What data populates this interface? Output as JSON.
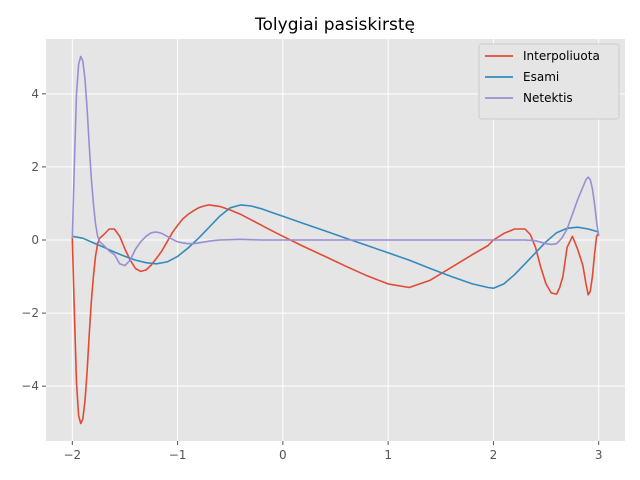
{
  "chart_data": {
    "type": "line",
    "title": "Tolygiai pasiskirstę",
    "xlabel": "",
    "ylabel": "",
    "xlim": [
      -2.25,
      3.25
    ],
    "ylim": [
      -5.5,
      5.5
    ],
    "xticks": [
      -2,
      -1,
      0,
      1,
      2,
      3
    ],
    "xtick_labels": [
      "−2",
      "−1",
      "0",
      "1",
      "2",
      "3"
    ],
    "yticks": [
      -4,
      -2,
      0,
      2,
      4
    ],
    "ytick_labels": [
      "−4",
      "−2",
      "0",
      "2",
      "4"
    ],
    "grid": true,
    "legend_position": "top-right",
    "background": "#e5e5e5",
    "series": [
      {
        "name": "Interpoliuota",
        "color": "#e24a33",
        "x": [
          -2.0,
          -1.98,
          -1.96,
          -1.94,
          -1.92,
          -1.9,
          -1.88,
          -1.86,
          -1.84,
          -1.82,
          -1.8,
          -1.78,
          -1.76,
          -1.74,
          -1.7,
          -1.65,
          -1.6,
          -1.55,
          -1.5,
          -1.45,
          -1.4,
          -1.35,
          -1.3,
          -1.25,
          -1.2,
          -1.15,
          -1.1,
          -1.05,
          -1.0,
          -0.95,
          -0.9,
          -0.85,
          -0.8,
          -0.75,
          -0.7,
          -0.6,
          -0.5,
          -0.4,
          -0.3,
          -0.2,
          -0.1,
          0.0,
          0.2,
          0.4,
          0.6,
          0.8,
          1.0,
          1.2,
          1.4,
          1.6,
          1.8,
          1.95,
          2.0,
          2.1,
          2.2,
          2.3,
          2.35,
          2.4,
          2.45,
          2.5,
          2.55,
          2.6,
          2.63,
          2.66,
          2.7,
          2.75,
          2.8,
          2.85,
          2.88,
          2.9,
          2.92,
          2.94,
          2.96,
          2.98,
          3.0
        ],
        "y": [
          0.05,
          -2.0,
          -3.9,
          -4.8,
          -5.02,
          -4.9,
          -4.4,
          -3.6,
          -2.6,
          -1.7,
          -1.0,
          -0.45,
          -0.1,
          0.05,
          0.15,
          0.3,
          0.3,
          0.1,
          -0.25,
          -0.55,
          -0.78,
          -0.86,
          -0.82,
          -0.68,
          -0.5,
          -0.3,
          -0.05,
          0.2,
          0.4,
          0.58,
          0.7,
          0.8,
          0.88,
          0.93,
          0.96,
          0.92,
          0.82,
          0.7,
          0.55,
          0.4,
          0.25,
          0.1,
          -0.18,
          -0.45,
          -0.72,
          -0.98,
          -1.2,
          -1.3,
          -1.1,
          -0.75,
          -0.4,
          -0.15,
          0.0,
          0.18,
          0.3,
          0.3,
          0.15,
          -0.2,
          -0.75,
          -1.2,
          -1.45,
          -1.48,
          -1.3,
          -1.0,
          -0.2,
          0.1,
          -0.25,
          -0.7,
          -1.2,
          -1.5,
          -1.4,
          -1.0,
          -0.4,
          0.1,
          0.2
        ]
      },
      {
        "name": "Esami",
        "color": "#348abd",
        "x": [
          -2.0,
          -1.9,
          -1.8,
          -1.7,
          -1.6,
          -1.5,
          -1.4,
          -1.3,
          -1.2,
          -1.1,
          -1.0,
          -0.9,
          -0.8,
          -0.7,
          -0.6,
          -0.5,
          -0.4,
          -0.3,
          -0.2,
          -0.1,
          0.0,
          0.2,
          0.4,
          0.6,
          0.8,
          1.0,
          1.2,
          1.4,
          1.6,
          1.8,
          1.95,
          2.0,
          2.1,
          2.2,
          2.3,
          2.4,
          2.5,
          2.6,
          2.7,
          2.8,
          2.9,
          3.0
        ],
        "y": [
          0.1,
          0.05,
          -0.08,
          -0.2,
          -0.33,
          -0.45,
          -0.55,
          -0.62,
          -0.65,
          -0.6,
          -0.45,
          -0.22,
          0.05,
          0.35,
          0.65,
          0.88,
          0.96,
          0.93,
          0.85,
          0.75,
          0.65,
          0.45,
          0.25,
          0.05,
          -0.15,
          -0.35,
          -0.55,
          -0.78,
          -1.0,
          -1.2,
          -1.3,
          -1.32,
          -1.2,
          -0.95,
          -0.65,
          -0.35,
          -0.05,
          0.2,
          0.32,
          0.35,
          0.3,
          0.22
        ]
      },
      {
        "name": "Netektis",
        "color": "#988ed5",
        "x": [
          -2.0,
          -1.98,
          -1.96,
          -1.94,
          -1.92,
          -1.9,
          -1.88,
          -1.86,
          -1.84,
          -1.82,
          -1.8,
          -1.78,
          -1.76,
          -1.74,
          -1.7,
          -1.65,
          -1.6,
          -1.55,
          -1.5,
          -1.45,
          -1.4,
          -1.35,
          -1.3,
          -1.25,
          -1.2,
          -1.15,
          -1.1,
          -1.05,
          -1.0,
          -0.95,
          -0.9,
          -0.85,
          -0.8,
          -0.7,
          -0.6,
          -0.4,
          -0.2,
          0.0,
          0.5,
          1.0,
          1.5,
          2.0,
          2.2,
          2.3,
          2.4,
          2.5,
          2.55,
          2.6,
          2.65,
          2.7,
          2.75,
          2.8,
          2.85,
          2.88,
          2.9,
          2.92,
          2.94,
          2.96,
          2.98,
          3.0
        ],
        "y": [
          0.05,
          2.1,
          4.0,
          4.8,
          5.02,
          4.9,
          4.4,
          3.6,
          2.6,
          1.7,
          1.0,
          0.45,
          0.1,
          -0.05,
          -0.15,
          -0.3,
          -0.4,
          -0.65,
          -0.7,
          -0.55,
          -0.25,
          -0.05,
          0.1,
          0.2,
          0.22,
          0.18,
          0.1,
          0.02,
          -0.05,
          -0.08,
          -0.1,
          -0.1,
          -0.08,
          -0.03,
          0.0,
          0.02,
          0.0,
          0.0,
          0.0,
          0.0,
          0.0,
          0.0,
          0.0,
          0.0,
          -0.02,
          -0.1,
          -0.12,
          -0.1,
          0.05,
          0.3,
          0.7,
          1.1,
          1.45,
          1.65,
          1.72,
          1.65,
          1.4,
          1.0,
          0.5,
          0.1
        ]
      }
    ]
  }
}
